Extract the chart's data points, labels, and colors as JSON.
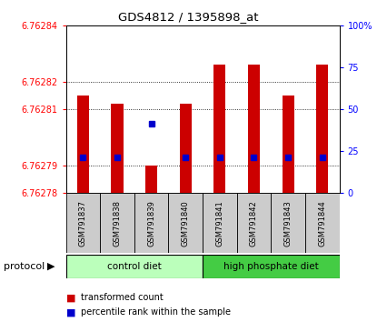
{
  "title": "GDS4812 / 1395898_at",
  "samples": [
    "GSM791837",
    "GSM791838",
    "GSM791839",
    "GSM791840",
    "GSM791841",
    "GSM791842",
    "GSM791843",
    "GSM791844"
  ],
  "bar_bottom": 6.76278,
  "bar_tops": [
    6.762815,
    6.762812,
    6.76279,
    6.762812,
    6.762826,
    6.762826,
    6.762815,
    6.762826
  ],
  "percentile_values": [
    6.762793,
    6.762793,
    6.762805,
    6.762793,
    6.762793,
    6.762793,
    6.762793,
    6.762793
  ],
  "ylim_left": [
    6.76278,
    6.76284
  ],
  "ylim_right": [
    0,
    100
  ],
  "yticks_left": [
    6.76278,
    6.76279,
    6.76281,
    6.76282,
    6.76284
  ],
  "yticks_right": [
    0,
    25,
    50,
    75,
    100
  ],
  "ytick_labels_left": [
    "6.76278",
    "6.76279",
    "6.76281",
    "6.76282",
    "6.76284"
  ],
  "ytick_labels_right": [
    "0",
    "25",
    "50",
    "75",
    "100%"
  ],
  "bar_color": "#cc0000",
  "percentile_color": "#0000cc",
  "bg_color": "#ffffff",
  "label_bg_color": "#cccccc",
  "control_diet_color": "#bbffbb",
  "high_phosphate_color": "#44cc44",
  "protocol_label": "protocol"
}
